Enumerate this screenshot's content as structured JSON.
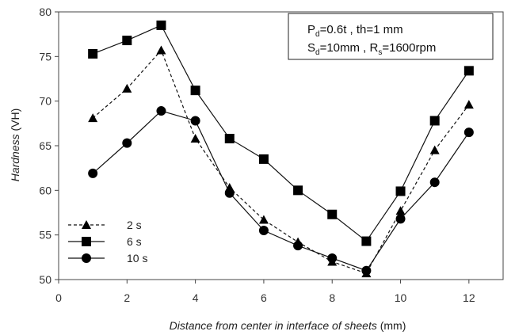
{
  "chart_data": {
    "type": "line",
    "xlabel_italic": "Distance from center in interface of sheets",
    "xlabel_unit": "(mm)",
    "ylabel_italic": "Hardness",
    "ylabel_unit": "(VH)",
    "xlim": [
      0,
      13
    ],
    "ylim": [
      50,
      80
    ],
    "xticks": [
      0,
      2,
      4,
      6,
      8,
      10,
      12
    ],
    "yticks": [
      50,
      55,
      60,
      65,
      70,
      75,
      80
    ],
    "grid": false,
    "legend_position": "bottom-left",
    "annotation": {
      "line1": {
        "p": "P",
        "p_sub": "d",
        "p_rest": "=0.6t , th=1 mm"
      },
      "line2": {
        "s": "S",
        "s_sub": "d",
        "s_rest": "=10mm , R",
        "r_sub": "s",
        "r_rest": "=1600rpm"
      }
    },
    "series": [
      {
        "name": "2 s",
        "marker": "triangle",
        "line_style": "dashed",
        "x": [
          1,
          2,
          3,
          4,
          5,
          6,
          7,
          8,
          9,
          10,
          11,
          12
        ],
        "values": [
          68.1,
          71.4,
          75.7,
          65.8,
          60.3,
          56.7,
          54.2,
          52.0,
          50.7,
          57.7,
          64.5,
          69.6
        ]
      },
      {
        "name": "6 s",
        "marker": "square",
        "line_style": "solid",
        "x": [
          1,
          2,
          3,
          4,
          5,
          6,
          7,
          8,
          9,
          10,
          11,
          12
        ],
        "values": [
          75.3,
          76.8,
          78.5,
          71.2,
          65.8,
          63.5,
          60.0,
          57.3,
          54.3,
          59.9,
          67.8,
          73.4
        ]
      },
      {
        "name": "10 s",
        "marker": "circle",
        "line_style": "solid",
        "x": [
          1,
          2,
          3,
          4,
          5,
          6,
          7,
          8,
          9,
          10,
          11,
          12
        ],
        "values": [
          61.9,
          65.3,
          68.9,
          67.8,
          59.7,
          55.5,
          53.8,
          52.4,
          51.0,
          56.8,
          60.9,
          66.5
        ]
      }
    ]
  }
}
